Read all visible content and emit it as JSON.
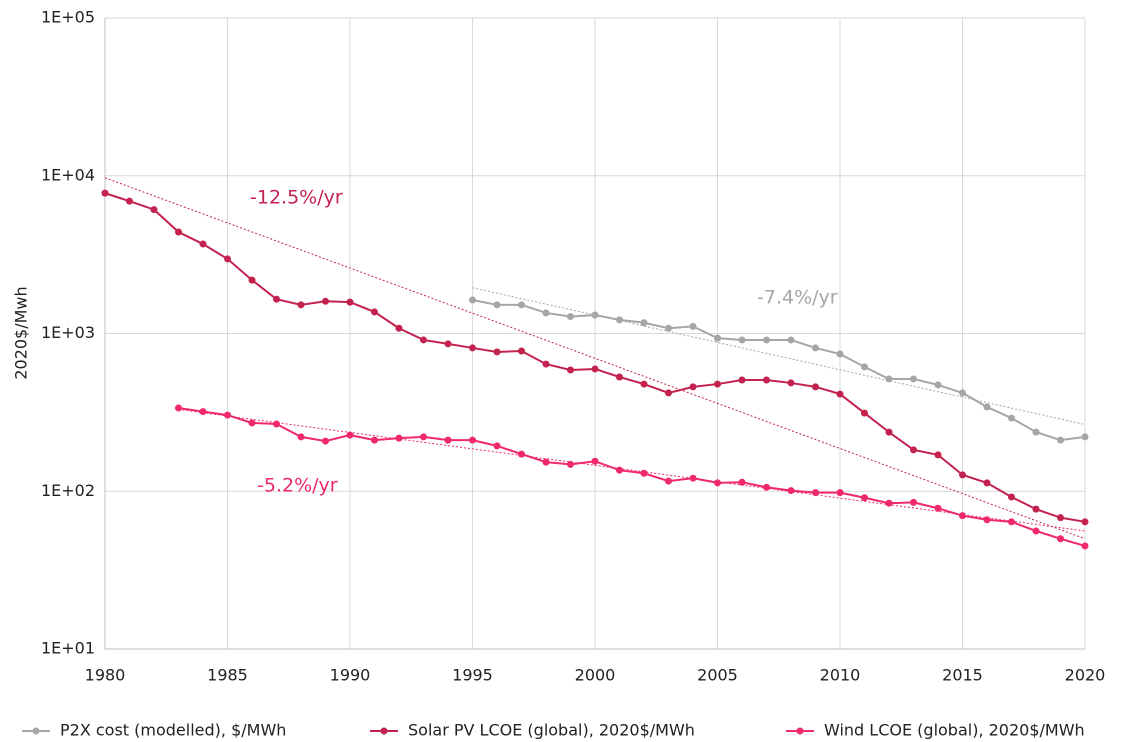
{
  "chart_data": {
    "type": "line",
    "log_y": true,
    "grid": true,
    "legend": "bottom",
    "y_label": "2020$/Mwh",
    "x": [
      1980,
      1981,
      1982,
      1983,
      1984,
      1985,
      1986,
      1987,
      1988,
      1989,
      1990,
      1991,
      1992,
      1993,
      1994,
      1995,
      1996,
      1997,
      1998,
      1999,
      2000,
      2001,
      2002,
      2003,
      2004,
      2005,
      2006,
      2007,
      2008,
      2009,
      2010,
      2011,
      2012,
      2013,
      2014,
      2015,
      2016,
      2017,
      2018,
      2019,
      2020
    ],
    "xlim": [
      1980,
      2020
    ],
    "xticks": [
      1980,
      1985,
      1990,
      1995,
      2000,
      2005,
      2010,
      2015,
      2020
    ],
    "ylim": [
      10,
      100000
    ],
    "yticks": [
      {
        "value": 10,
        "label": "1E+01"
      },
      {
        "value": 100,
        "label": "1E+02"
      },
      {
        "value": 1000,
        "label": "1E+03"
      },
      {
        "value": 10000,
        "label": "1E+04"
      },
      {
        "value": 100000,
        "label": "1E+05"
      }
    ],
    "series": [
      {
        "name": "P2X cost (modelled), $/MWh",
        "color": "#a6a6a6",
        "values": [
          null,
          null,
          null,
          null,
          null,
          null,
          null,
          null,
          null,
          null,
          null,
          null,
          null,
          null,
          null,
          1630,
          1520,
          1520,
          1350,
          1280,
          1310,
          1220,
          1170,
          1080,
          1110,
          935,
          910,
          910,
          910,
          810,
          741,
          614,
          515,
          515,
          472,
          420,
          342,
          291,
          237,
          211,
          221
        ]
      },
      {
        "name": "Solar PV LCOE (global), 2020$/MWh",
        "color": "#c3224f",
        "values": [
          7760,
          6900,
          6100,
          4400,
          3690,
          2970,
          2180,
          1650,
          1520,
          1600,
          1580,
          1370,
          1080,
          910,
          860,
          810,
          764,
          775,
          640,
          587,
          596,
          530,
          478,
          420,
          459,
          478,
          507,
          507,
          486,
          459,
          413,
          313,
          237,
          183,
          170,
          127,
          113,
          92,
          77,
          68,
          64
        ]
      },
      {
        "name": "Wind LCOE (global), 2020$/MWh",
        "color": "#f0286e",
        "values": [
          null,
          null,
          null,
          337,
          320,
          304,
          271,
          267,
          221,
          208,
          227,
          211,
          217,
          221,
          211,
          211,
          194,
          172,
          153,
          148,
          155,
          136,
          130,
          116,
          121,
          113,
          114,
          106,
          101,
          98,
          98,
          91,
          84,
          85,
          78,
          70,
          66,
          64,
          56,
          50,
          45
        ]
      }
    ],
    "trendlines": [
      {
        "label": "-12.5%/yr",
        "color": "#c3224f",
        "x": [
          1980,
          2020
        ],
        "values": [
          9700,
          50
        ]
      },
      {
        "label": "-7.4%/yr",
        "color": "#a6a6a6",
        "x": [
          1995,
          2020
        ],
        "values": [
          1950,
          265
        ]
      },
      {
        "label": "-5.2%/yr",
        "color": "#f0286e",
        "x": [
          1983,
          2020
        ],
        "values": [
          330,
          56
        ]
      }
    ]
  }
}
